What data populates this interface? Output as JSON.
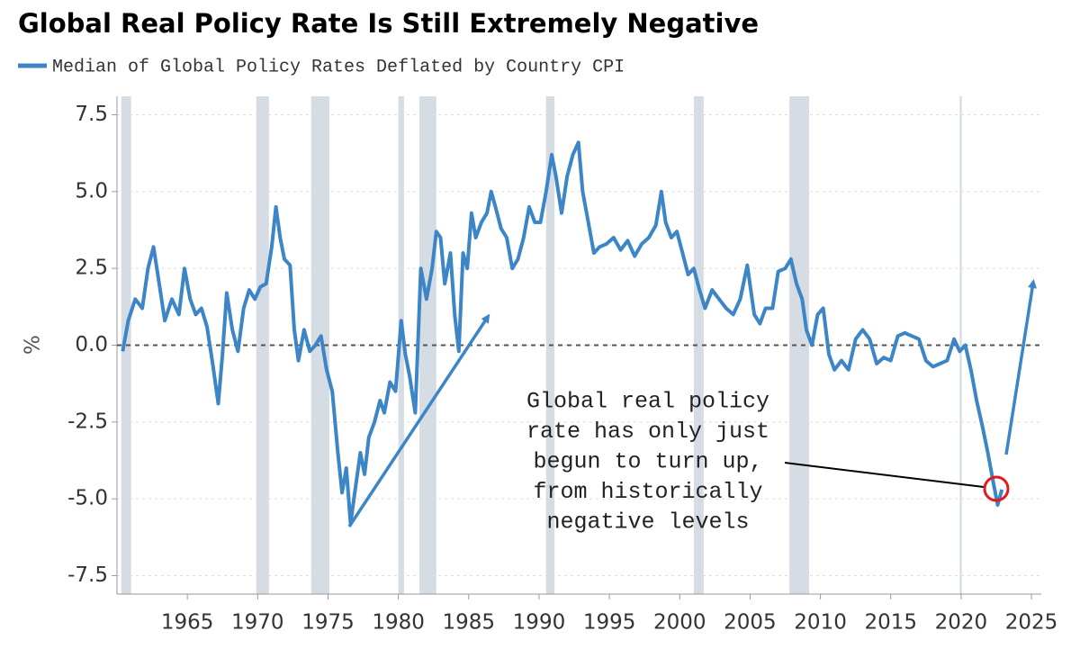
{
  "chart_data": {
    "type": "line",
    "title": "Global Real Policy Rate Is Still Extremely Negative",
    "ylabel": "%",
    "annotation": [
      "Global real policy",
      "rate has only just",
      "begun to turn up,",
      "from historically",
      "negative levels"
    ],
    "xlim": [
      1960,
      2025.7
    ],
    "ylim": [
      -8.1,
      8.1
    ],
    "xticks": [
      1965,
      1970,
      1975,
      1980,
      1985,
      1990,
      1995,
      2000,
      2005,
      2010,
      2015,
      2020,
      2025
    ],
    "yticks": [
      7.5,
      {
        "value": 5,
        "label": "5.0"
      },
      2.5,
      {
        "value": 0,
        "label": "0.0"
      },
      -2.5,
      {
        "value": -5,
        "label": "-5.0"
      },
      -7.5
    ],
    "grid": true,
    "reference_line": 0,
    "shaded_periods": [
      [
        1960.3,
        1961.0
      ],
      [
        1969.9,
        1970.8
      ],
      [
        1973.8,
        1975.1
      ],
      [
        1980.0,
        1980.4
      ],
      [
        1981.5,
        1982.7
      ],
      [
        1990.5,
        1991.1
      ],
      [
        2001.0,
        2001.7
      ],
      [
        2007.8,
        2009.2
      ],
      [
        2019.9,
        2020.05
      ]
    ],
    "shade_color": "#d5dce4",
    "x": [
      1960.4,
      1960.8,
      1961.3,
      1961.8,
      1962.2,
      1962.6,
      1963.0,
      1963.4,
      1963.9,
      1964.4,
      1964.8,
      1965.2,
      1965.6,
      1966.0,
      1966.4,
      1966.8,
      1967.2,
      1967.5,
      1967.8,
      1968.2,
      1968.6,
      1969.0,
      1969.4,
      1969.8,
      1970.2,
      1970.6,
      1971.0,
      1971.3,
      1971.6,
      1971.9,
      1972.3,
      1972.6,
      1972.9,
      1973.3,
      1973.7,
      1974.1,
      1974.5,
      1974.9,
      1975.3,
      1975.7,
      1976.0,
      1976.3,
      1976.6,
      1976.9,
      1977.3,
      1977.6,
      1977.9,
      1978.3,
      1978.7,
      1979.0,
      1979.4,
      1979.8,
      1980.2,
      1980.5,
      1980.8,
      1981.2,
      1981.6,
      1982.0,
      1982.4,
      1982.7,
      1983.0,
      1983.3,
      1983.7,
      1984.0,
      1984.3,
      1984.6,
      1984.9,
      1985.2,
      1985.5,
      1985.9,
      1986.3,
      1986.6,
      1986.9,
      1987.3,
      1987.7,
      1988.1,
      1988.5,
      1988.9,
      1989.3,
      1989.7,
      1990.1,
      1990.5,
      1990.9,
      1991.2,
      1991.6,
      1992.0,
      1992.4,
      1992.8,
      1993.1,
      1993.5,
      1993.9,
      1994.3,
      1994.8,
      1995.3,
      1995.8,
      1996.3,
      1996.8,
      1997.3,
      1997.8,
      1998.3,
      1998.7,
      1999.0,
      1999.4,
      1999.8,
      2000.2,
      2000.6,
      2001.0,
      2001.4,
      2001.8,
      2002.3,
      2002.8,
      2003.3,
      2003.8,
      2004.3,
      2004.8,
      2005.3,
      2005.7,
      2006.1,
      2006.6,
      2007.0,
      2007.5,
      2007.9,
      2008.3,
      2008.7,
      2009.0,
      2009.4,
      2009.8,
      2010.2,
      2010.6,
      2011.0,
      2011.5,
      2012.0,
      2012.5,
      2013.0,
      2013.5,
      2014.0,
      2014.5,
      2015.0,
      2015.5,
      2016.0,
      2016.5,
      2017.0,
      2017.5,
      2018.0,
      2018.5,
      2019.0,
      2019.5,
      2019.9,
      2020.3,
      2020.7,
      2021.1,
      2021.5,
      2021.9,
      2022.3,
      2022.6,
      2022.9
    ],
    "series": [
      {
        "name": "Median of Global Policy Rates Deflated by Country CPI",
        "color": "#3c85c6",
        "values": [
          -0.2,
          0.8,
          1.5,
          1.2,
          2.5,
          3.2,
          2.0,
          0.8,
          1.5,
          1.0,
          2.5,
          1.5,
          1.0,
          1.2,
          0.6,
          -0.6,
          -1.9,
          -0.3,
          1.7,
          0.5,
          -0.2,
          1.2,
          1.8,
          1.5,
          1.9,
          2.0,
          3.2,
          4.5,
          3.5,
          2.8,
          2.6,
          0.5,
          -0.5,
          0.5,
          -0.2,
          0.0,
          0.3,
          -0.8,
          -1.5,
          -3.5,
          -4.8,
          -4.0,
          -5.8,
          -4.8,
          -3.5,
          -4.2,
          -3.0,
          -2.5,
          -1.8,
          -2.2,
          -1.2,
          -1.5,
          0.8,
          -0.3,
          -1.0,
          -2.2,
          2.5,
          1.5,
          2.5,
          3.7,
          3.5,
          2.0,
          3.0,
          1.0,
          -0.2,
          3.0,
          2.5,
          4.3,
          3.5,
          4.0,
          4.3,
          5.0,
          4.5,
          3.8,
          3.5,
          2.5,
          2.8,
          3.5,
          4.5,
          4.0,
          4.0,
          5.0,
          6.2,
          5.5,
          4.3,
          5.5,
          6.2,
          6.6,
          5.0,
          4.0,
          3.0,
          3.2,
          3.3,
          3.5,
          3.1,
          3.4,
          2.9,
          3.3,
          3.5,
          3.9,
          5.0,
          4.0,
          3.5,
          3.7,
          3.0,
          2.3,
          2.5,
          1.8,
          1.2,
          1.8,
          1.5,
          1.2,
          1.0,
          1.5,
          2.6,
          1.0,
          0.7,
          1.2,
          1.2,
          2.4,
          2.5,
          2.8,
          2.0,
          1.5,
          0.5,
          0.0,
          1.0,
          1.2,
          -0.3,
          -0.8,
          -0.5,
          -0.8,
          0.2,
          0.5,
          0.2,
          -0.6,
          -0.4,
          -0.5,
          0.3,
          0.4,
          0.3,
          0.2,
          -0.5,
          -0.7,
          -0.6,
          -0.5,
          0.2,
          -0.2,
          0.0,
          -0.8,
          -1.8,
          -2.6,
          -3.5,
          -4.5,
          -5.2,
          -4.7
        ]
      }
    ]
  }
}
